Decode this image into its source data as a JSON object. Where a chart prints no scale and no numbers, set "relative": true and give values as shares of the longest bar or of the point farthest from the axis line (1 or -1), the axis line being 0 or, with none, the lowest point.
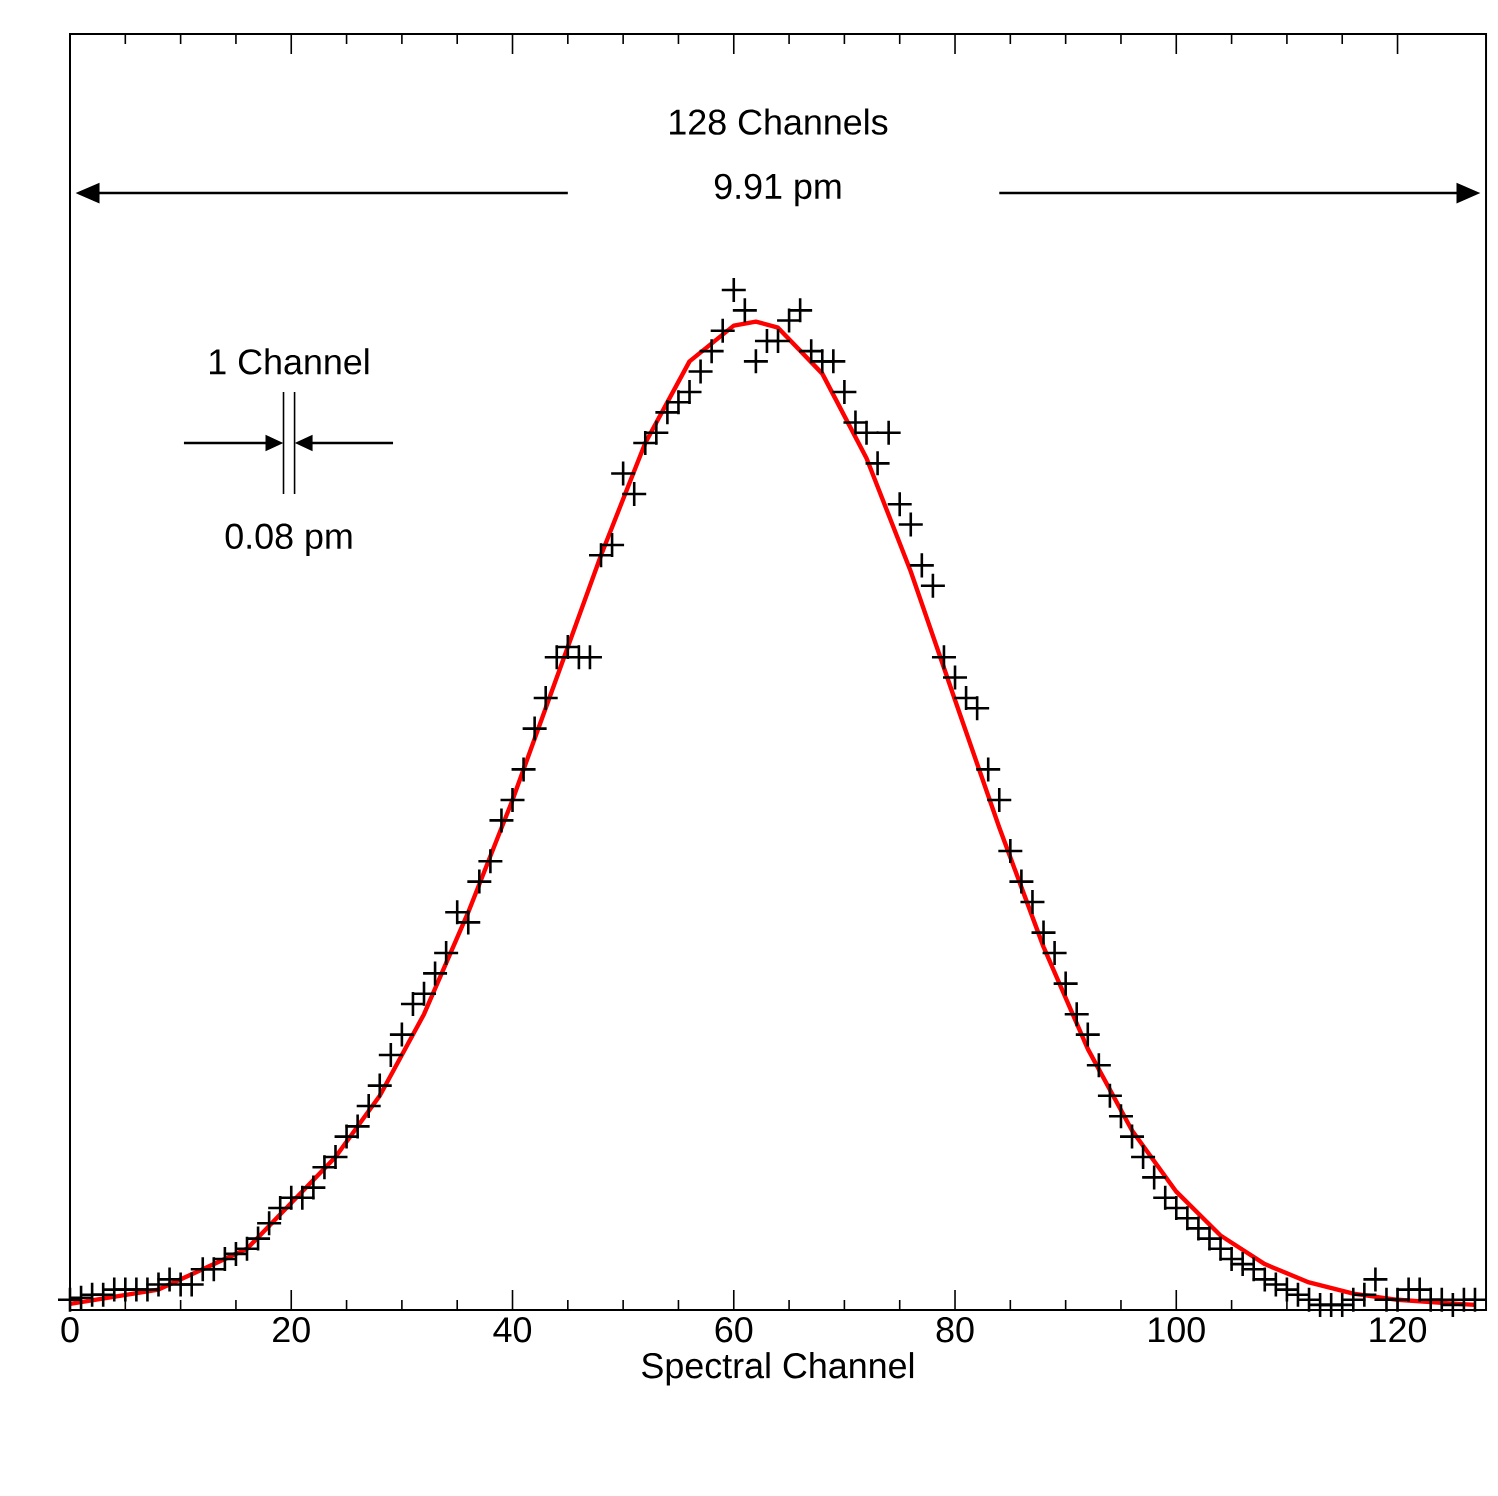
{
  "chart_data": {
    "type": "scatter",
    "xlabel": "Spectral Channel",
    "relative": true,
    "xlim": [
      0,
      128
    ],
    "xticks": [
      0,
      20,
      40,
      60,
      80,
      100,
      120
    ],
    "marker": "cross",
    "grid": false,
    "tick_labels": "x",
    "annotations": [
      "128 Channels",
      "9.91 pm",
      "1 Channel",
      "0.08 pm"
    ],
    "series": [
      {
        "color": "#000000",
        "x": [
          0,
          1,
          2,
          3,
          4,
          5,
          6,
          7,
          8,
          9,
          10,
          11,
          12,
          13,
          14,
          15,
          16,
          17,
          18,
          19,
          20,
          21,
          22,
          23,
          24,
          25,
          26,
          27,
          28,
          29,
          30,
          31,
          32,
          33,
          34,
          35,
          36,
          37,
          38,
          39,
          40,
          41,
          42,
          43,
          44,
          45,
          46,
          47,
          48,
          49,
          50,
          51,
          52,
          53,
          54,
          55,
          56,
          57,
          58,
          59,
          60,
          61,
          62,
          63,
          64,
          65,
          66,
          67,
          68,
          69,
          70,
          71,
          72,
          73,
          74,
          75,
          76,
          77,
          78,
          79,
          80,
          81,
          82,
          83,
          84,
          85,
          86,
          87,
          88,
          89,
          90,
          91,
          92,
          93,
          94,
          95,
          96,
          97,
          98,
          99,
          100,
          101,
          102,
          103,
          104,
          105,
          106,
          107,
          108,
          109,
          110,
          111,
          112,
          113,
          114,
          115,
          116,
          117,
          118,
          119,
          120,
          121,
          122,
          123,
          124,
          125,
          126,
          127
        ],
        "values": [
          0.01,
          0.012,
          0.015,
          0.015,
          0.02,
          0.02,
          0.02,
          0.02,
          0.025,
          0.03,
          0.025,
          0.025,
          0.04,
          0.04,
          0.05,
          0.055,
          0.06,
          0.07,
          0.085,
          0.1,
          0.11,
          0.11,
          0.12,
          0.14,
          0.15,
          0.17,
          0.18,
          0.2,
          0.22,
          0.25,
          0.27,
          0.3,
          0.31,
          0.33,
          0.35,
          0.39,
          0.38,
          0.42,
          0.44,
          0.48,
          0.5,
          0.53,
          0.57,
          0.6,
          0.64,
          0.65,
          0.64,
          0.64,
          0.74,
          0.75,
          0.82,
          0.8,
          0.85,
          0.86,
          0.88,
          0.89,
          0.9,
          0.92,
          0.94,
          0.96,
          1.0,
          0.98,
          0.93,
          0.95,
          0.95,
          0.97,
          0.98,
          0.94,
          0.93,
          0.93,
          0.9,
          0.87,
          0.86,
          0.83,
          0.86,
          0.79,
          0.77,
          0.73,
          0.71,
          0.64,
          0.62,
          0.6,
          0.59,
          0.53,
          0.5,
          0.45,
          0.42,
          0.4,
          0.37,
          0.35,
          0.32,
          0.29,
          0.27,
          0.24,
          0.21,
          0.19,
          0.17,
          0.15,
          0.13,
          0.11,
          0.1,
          0.09,
          0.08,
          0.07,
          0.06,
          0.05,
          0.045,
          0.04,
          0.03,
          0.025,
          0.02,
          0.015,
          0.01,
          0.005,
          0.005,
          0.005,
          0.01,
          0.015,
          0.03,
          0.01,
          0.01,
          0.02,
          0.02,
          0.01,
          0.01,
          0.005,
          0.01,
          0.01
        ]
      },
      {
        "type": "line",
        "color": "#ff0000",
        "marker": "none",
        "line_style": "solid",
        "x": [
          0,
          8,
          16,
          24,
          28,
          32,
          36,
          40,
          44,
          48,
          52,
          56,
          60,
          62,
          64,
          68,
          72,
          76,
          80,
          84,
          88,
          92,
          96,
          100,
          104,
          108,
          112,
          116,
          120,
          124,
          127
        ],
        "values": [
          0.006,
          0.02,
          0.06,
          0.15,
          0.21,
          0.29,
          0.39,
          0.5,
          0.62,
          0.74,
          0.85,
          0.93,
          0.965,
          0.969,
          0.963,
          0.918,
          0.835,
          0.724,
          0.598,
          0.473,
          0.356,
          0.256,
          0.176,
          0.116,
          0.073,
          0.045,
          0.027,
          0.016,
          0.01,
          0.007,
          0.005
        ]
      }
    ]
  }
}
